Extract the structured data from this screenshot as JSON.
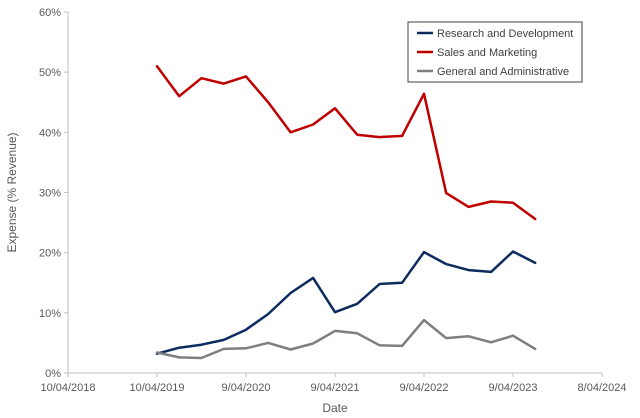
{
  "chart_data": {
    "type": "line",
    "xlabel": "Date",
    "ylabel": "Expense (% Revenue)",
    "ylim": [
      0,
      60
    ],
    "y_ticks": [
      0,
      10,
      20,
      30,
      40,
      50,
      60
    ],
    "y_tick_labels": [
      "0%",
      "10%",
      "20%",
      "30%",
      "40%",
      "50%",
      "60%"
    ],
    "xlim": [
      "2018-04-10",
      "2024-04-08"
    ],
    "x_ticks": [
      "2018-04-10",
      "2019-04-10",
      "2020-04-09",
      "2021-04-09",
      "2022-04-09",
      "2023-04-09",
      "2024-04-08"
    ],
    "x_tick_labels": [
      "10/04/2018",
      "10/04/2019",
      "9/04/2020",
      "9/04/2021",
      "9/04/2022",
      "9/04/2023",
      "8/04/2024"
    ],
    "grid": false,
    "legend_position": "top-right",
    "x": [
      "2019-04-10",
      "2019-07-10",
      "2019-10-09",
      "2020-01-09",
      "2020-04-09",
      "2020-07-09",
      "2020-10-09",
      "2021-01-09",
      "2021-04-09",
      "2021-07-09",
      "2021-10-09",
      "2022-01-09",
      "2022-04-09",
      "2022-07-09",
      "2022-10-09",
      "2023-01-09",
      "2023-04-09",
      "2023-07-09"
    ],
    "series": [
      {
        "name": "Research and Development",
        "color": "#0d2b5e",
        "values": [
          3.2,
          4.2,
          4.7,
          5.5,
          7.2,
          9.8,
          13.3,
          15.8,
          10.1,
          11.5,
          14.8,
          15.0,
          20.1,
          18.1,
          17.1,
          16.8,
          20.2,
          18.3
        ]
      },
      {
        "name": "Sales and Marketing",
        "color": "#c00000",
        "values": [
          51.0,
          46.0,
          49.0,
          48.1,
          49.3,
          45.0,
          40.0,
          41.3,
          44.0,
          39.6,
          39.2,
          39.4,
          46.4,
          29.9,
          27.6,
          28.5,
          28.3,
          25.6
        ]
      },
      {
        "name": "General and Administrative",
        "color": "#7f7f7f",
        "values": [
          3.4,
          2.6,
          2.5,
          4.0,
          4.1,
          5.0,
          3.9,
          4.9,
          7.0,
          6.6,
          4.6,
          4.5,
          8.8,
          5.8,
          6.1,
          5.1,
          6.2,
          4.0
        ]
      }
    ]
  }
}
